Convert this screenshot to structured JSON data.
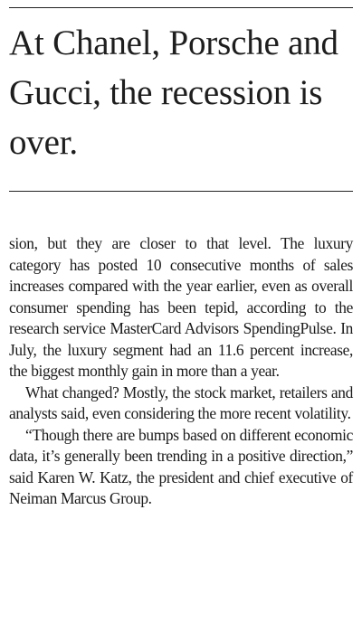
{
  "headline": "At Chanel, Porsche and Gucci, the recession is over.",
  "paragraphs": [
    "sion, but they are closer to that level. The luxury category has posted 10 consecutive months of sales increases compared with the year earlier, even as overall consumer spend­ing has been tepid, according to the research service MasterCard Advisors Spending­Pulse. In July, the luxury segment had an 11.6 percent increase, the biggest monthly gain in more than a year.",
    "What changed? Mostly, the stock market, retailers and analysts said, even considering the more recent volatility.",
    "“Though there are bumps based on dif­ferent economic data, it’s generally been trending in a positive direction,” said Karen W. Katz, the president and chief executive of Neiman Marcus Group."
  ]
}
